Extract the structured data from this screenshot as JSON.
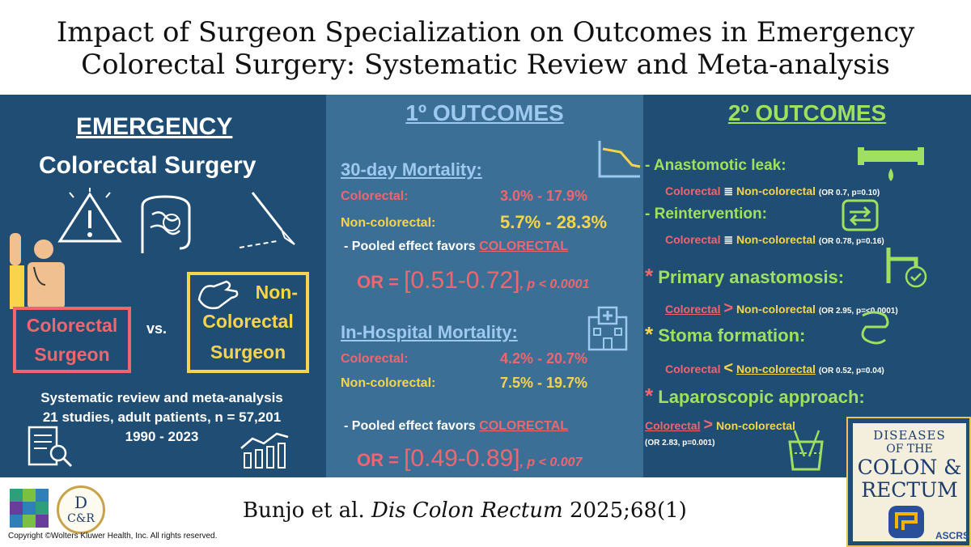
{
  "title_line1": "Impact of Surgeon Specialization on Outcomes in Emergency",
  "title_line2": "Colorectal Surgery: Systematic Review and Meta-analysis",
  "left": {
    "heading1": "EMERGENCY",
    "heading2": "Colorectal Surgery",
    "box1_line1": "Colorectal",
    "box1_line2": "Surgeon",
    "vs": "vs.",
    "box2_line1": "Non-",
    "box2_line2": "Colorectal",
    "box2_line3": "Surgeon",
    "summary1": "Systematic review and meta-analysis",
    "summary2": "21 studies, adult patients, n = 57,201",
    "summary3": "1990 - 2023"
  },
  "mid": {
    "heading": "1º OUTCOMES",
    "sec1_title": "30-day Mortality:",
    "sec1_row1_label": "Colorectal:",
    "sec1_row1_value": "3.0% - 17.9%",
    "sec1_row2_label": "Non-colorectal:",
    "sec1_row2_value": "5.7% - 28.3%",
    "sec1_pooled": "- Pooled effect favors",
    "sec1_pooled_fav": "COLORECTAL",
    "sec1_or_label": "OR =",
    "sec1_or_value": "[0.51-0.72]",
    "sec1_p": ", p < 0.0001",
    "sec2_title": "In-Hospital Mortality:",
    "sec2_row1_label": "Colorectal:",
    "sec2_row1_value": "4.2% - 20.7%",
    "sec2_row2_label": "Non-colorectal:",
    "sec2_row2_value": "7.5% - 19.7%",
    "sec2_pooled": "- Pooled effect favors",
    "sec2_pooled_fav": "COLORECTAL",
    "sec2_or_label": "OR =",
    "sec2_or_value": "[0.49-0.89]",
    "sec2_p": ", p < 0.007"
  },
  "right": {
    "heading": "2º OUTCOMES",
    "item1": "- Anastomotic leak:",
    "item1_c": "Colorectal",
    "item1_op": "≣",
    "item1_n": "Non-colorectal",
    "item1_stat": "(OR 0.7, p=0.10)",
    "item2": "- Reintervention:",
    "item2_c": "Colorectal",
    "item2_op": "≣",
    "item2_n": "Non-colorectal",
    "item2_stat": "(OR 0.78, p=0.16)",
    "item3_star": "*",
    "item3": "Primary anastomosis:",
    "item3_c": "Colorectal",
    "item3_op": ">",
    "item3_n": "Non-colorectal",
    "item3_stat": "(OR 2.95, p=<0.0001)",
    "item4_star": "*",
    "item4": "Stoma formation:",
    "item4_c": "Colorectal",
    "item4_op": "<",
    "item4_n": "Non-colorectal",
    "item4_stat": "(OR 0.52, p=0.04)",
    "item5_star": "*",
    "item5": "Laparoscopic approach:",
    "item5_c": "Colorectal",
    "item5_op": ">",
    "item5_n": "Non-colorectal",
    "item5_stat": "(OR 2.83, p=0.001)"
  },
  "footer": {
    "cite_authors": "Bunjo et al.",
    "cite_journal": "Dis Colon Rectum",
    "cite_ref": "2025;68(1)",
    "copyright": "Copyright ©Wolters Kluwer Health, Inc. All rights reserved.",
    "logo_dcr_top": "D",
    "logo_dcr_bottom": "C&R",
    "journal_line1": "DISEASES",
    "journal_line2": "OF THE",
    "journal_line3": "COLON &",
    "journal_line4": "RECTUM",
    "journal_badge": "ASCRS"
  }
}
